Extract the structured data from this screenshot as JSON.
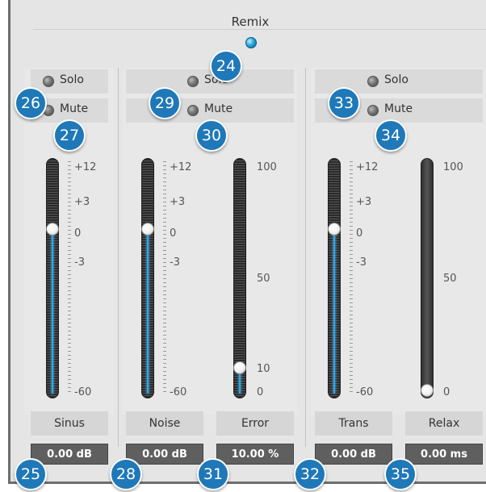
{
  "group": {
    "title": "Remix"
  },
  "channels": {
    "sinus": {
      "solo_label": "Solo",
      "mute_label": "Mute",
      "name": "Sinus",
      "value": "0.00 dB",
      "level_fraction": 0.72
    },
    "noise": {
      "solo_label": "Solo",
      "mute_label": "Mute",
      "name": "Noise",
      "value": "0.00 dB",
      "level_fraction": 0.72
    },
    "error": {
      "name": "Error",
      "value": "10.00 %",
      "level_fraction": 0.1
    },
    "trans": {
      "solo_label": "Solo",
      "mute_label": "Mute",
      "name": "Trans",
      "value": "0.00 dB",
      "level_fraction": 0.72
    },
    "relax": {
      "name": "Relax",
      "value": "0.00 ms",
      "level_fraction": 0.0
    }
  },
  "db_scale": [
    "+12",
    "+3",
    "0",
    "-3",
    "-60"
  ],
  "pct_scale": [
    "100",
    "50",
    "10",
    "0"
  ],
  "badges": {
    "b24": "24",
    "b25": "25",
    "b26": "26",
    "b27": "27",
    "b28": "28",
    "b29": "29",
    "b30": "30",
    "b31": "31",
    "b32": "32",
    "b33": "33",
    "b34": "34",
    "b35": "35"
  },
  "colors": {
    "accent": "#22aaff",
    "badge": "#1f78b8",
    "value_box": "#5f5f5f"
  }
}
